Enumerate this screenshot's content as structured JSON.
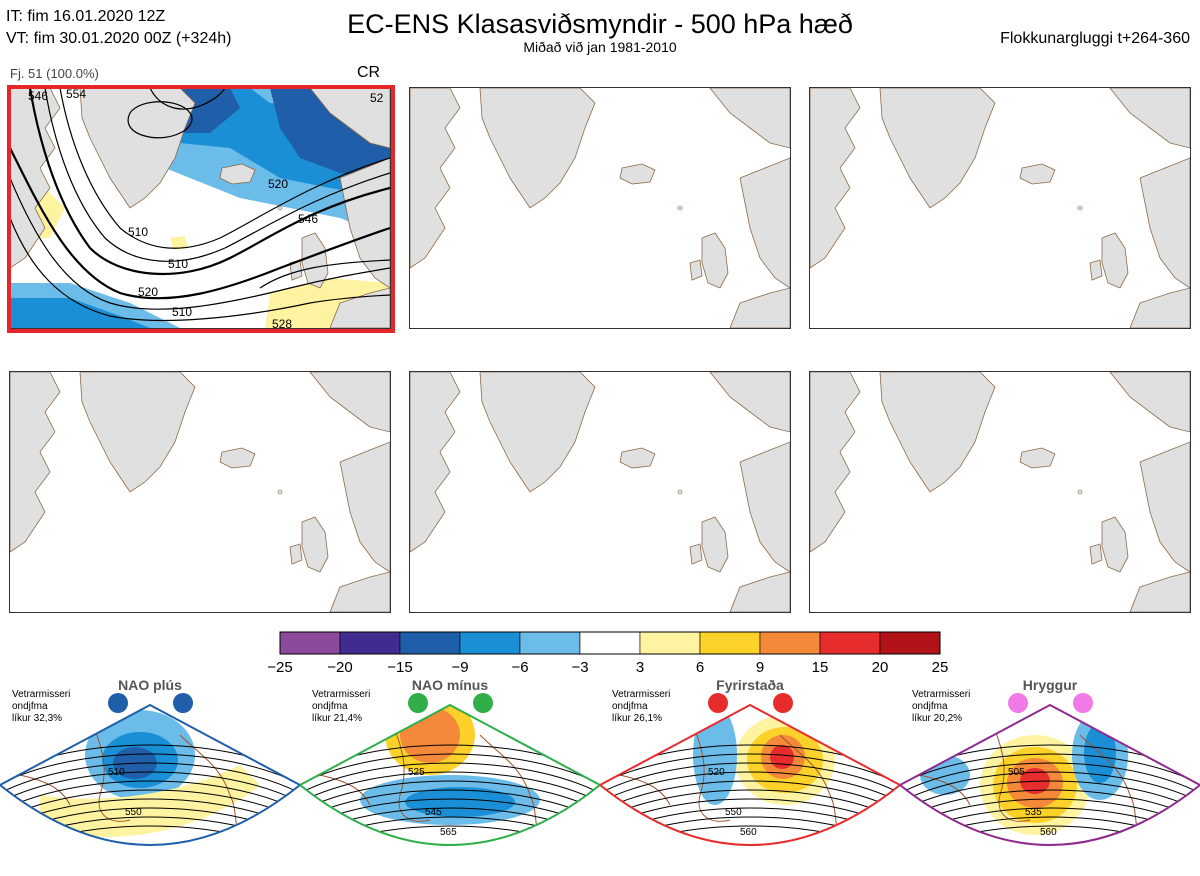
{
  "header": {
    "init_time": "IT: fim 16.01.2020 12Z",
    "valid_time": "VT: fim 30.01.2020 00Z  (+324h)",
    "title": "EC-ENS Klasasviðsmyndir - 500 hPa hæð",
    "subtitle": "Miðað við jan 1981-2010",
    "window": "Flokkunargluggi t+264-360"
  },
  "panel1": {
    "label": "Fj. 51 (100.0%)",
    "regime_code": "CR",
    "contour_labels": [
      "510",
      "520",
      "546",
      "510",
      "520",
      "510",
      "528",
      "546",
      "554",
      "52"
    ]
  },
  "colorbar": {
    "colors": [
      "#8b4a9c",
      "#3f2c8e",
      "#1f5ea8",
      "#1a8fd6",
      "#6cbcea",
      "#ffffff",
      "#fdf3a0",
      "#fcd22a",
      "#f5893a",
      "#e62c2c",
      "#b01217"
    ],
    "ticks": [
      "−25",
      "−20",
      "−15",
      "−9",
      "−6",
      "−3",
      "3",
      "6",
      "9",
      "15",
      "20",
      "25"
    ]
  },
  "regimes": [
    {
      "name": "NAO plús",
      "season": "Vetrarmisseri",
      "type": "ondjfma",
      "prob": "líkur 32,3%",
      "color": "#1f5ea8",
      "dot": "#1f5ea8",
      "labels": [
        "510",
        "550"
      ]
    },
    {
      "name": "NAO mínus",
      "season": "Vetrarmisseri",
      "type": "ondjfma",
      "prob": "líkur 21,4%",
      "color": "#2fae4a",
      "dot": "#2fae4a",
      "labels": [
        "525",
        "545",
        "565"
      ]
    },
    {
      "name": "Fyrirstaða",
      "season": "Vetrarmisseri",
      "type": "ondjfma",
      "prob": "líkur 26,1%",
      "color": "#e62c2c",
      "dot": "#e62c2c",
      "labels": [
        "520",
        "550",
        "560"
      ]
    },
    {
      "name": "Hryggur",
      "season": "Vetrarmisseri",
      "type": "ondjfma",
      "prob": "líkur 20,2%",
      "color": "#8e2a8e",
      "dot": "#ef7ae8",
      "labels": [
        "505",
        "535",
        "560"
      ]
    }
  ]
}
